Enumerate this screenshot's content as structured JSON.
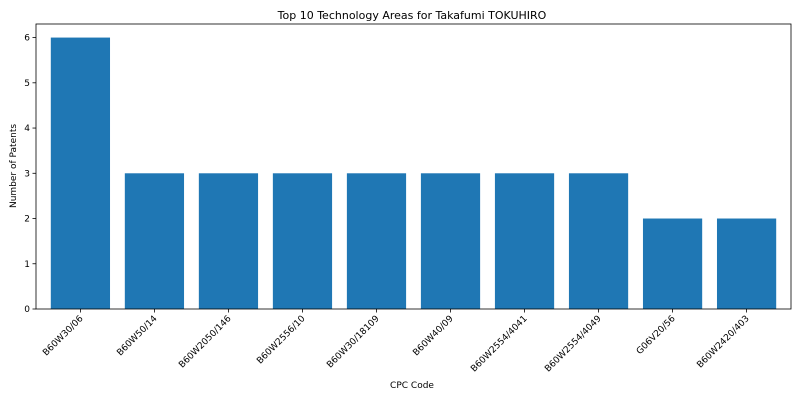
{
  "chart_data": {
    "type": "bar",
    "title": "Top 10 Technology Areas for Takafumi TOKUHIRO",
    "xlabel": "CPC Code",
    "ylabel": "Number of Patents",
    "categories": [
      "B60W30/06",
      "B60W50/14",
      "B60W2050/146",
      "B60W2556/10",
      "B60W30/18109",
      "B60W40/09",
      "B60W2554/4041",
      "B60W2554/4049",
      "G06V20/56",
      "B60W2420/403"
    ],
    "values": [
      6,
      3,
      3,
      3,
      3,
      3,
      3,
      3,
      2,
      2
    ],
    "ylim": [
      0,
      6.3
    ],
    "yticks": [
      0,
      1,
      2,
      3,
      4,
      5,
      6
    ],
    "grid": false,
    "legend": "none",
    "bar_color": "#1f77b4"
  }
}
